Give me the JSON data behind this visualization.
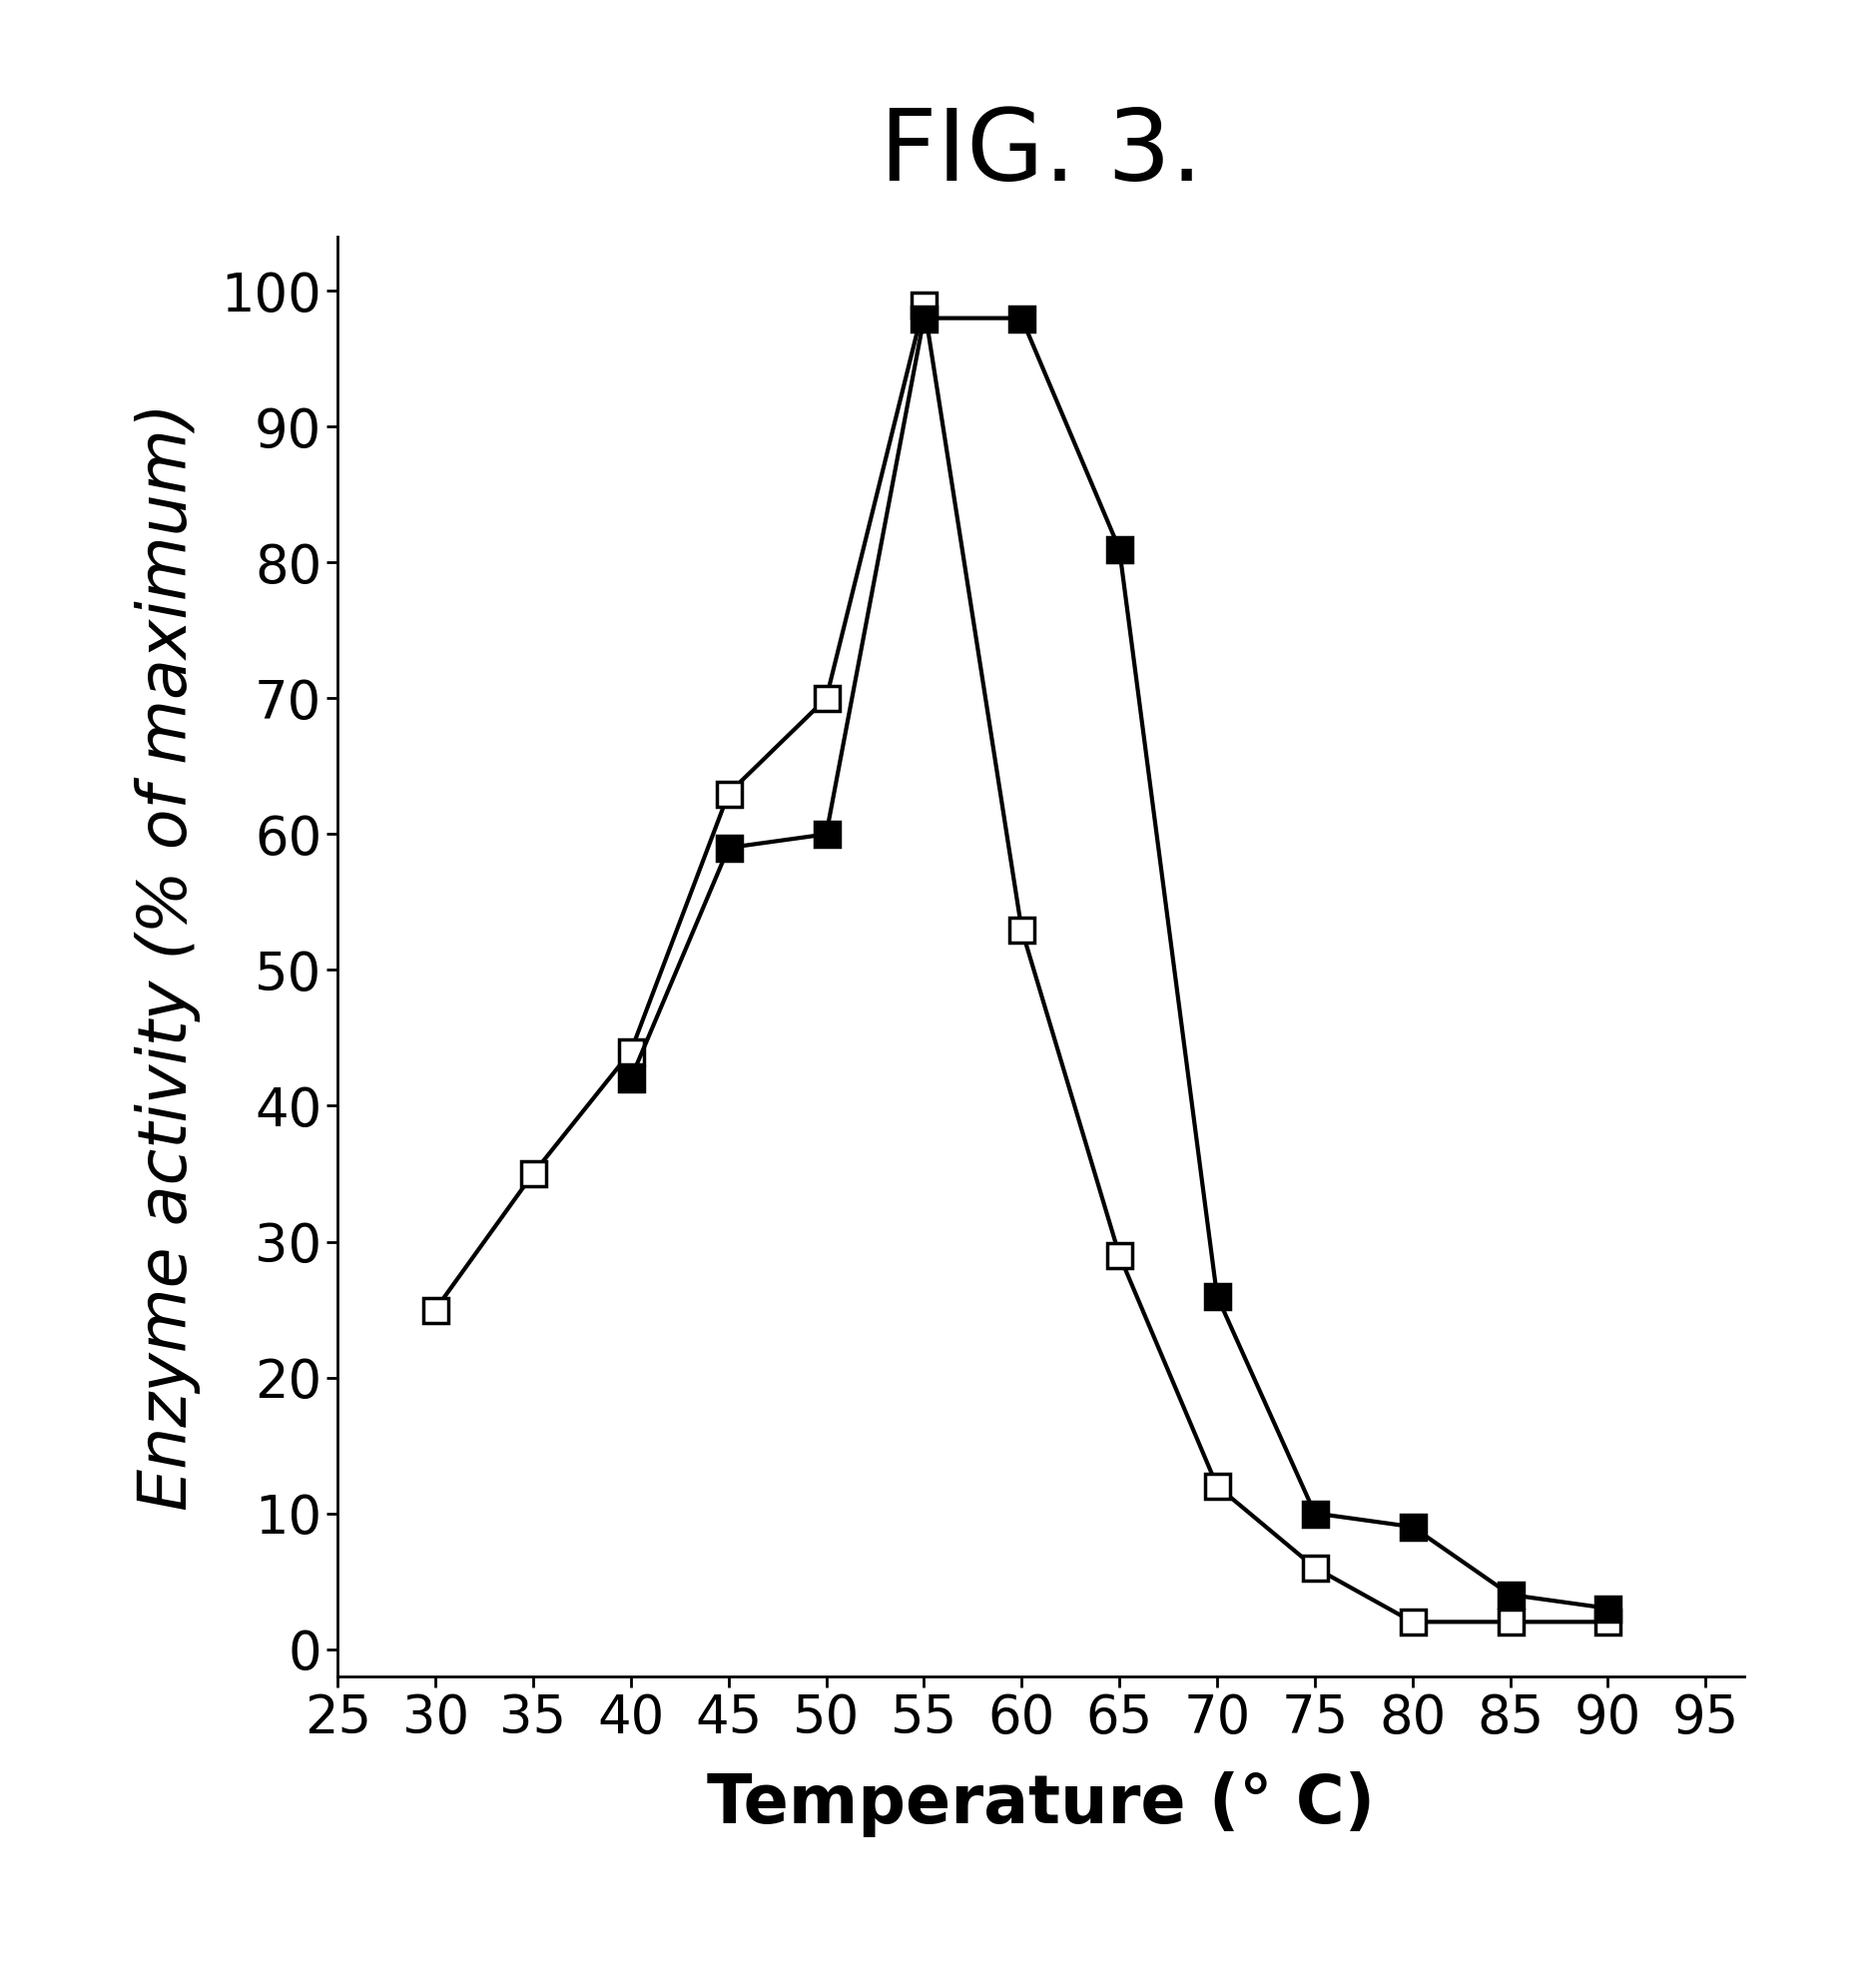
{
  "title": "FIG. 3.",
  "xlabel": "Temperature (° C)",
  "ylabel": "Enzyme activity (% of maximum)",
  "xlim": [
    25,
    97
  ],
  "ylim": [
    -2,
    104
  ],
  "xticks": [
    25,
    30,
    35,
    40,
    45,
    50,
    55,
    60,
    65,
    70,
    75,
    80,
    85,
    90,
    95
  ],
  "yticks": [
    0,
    10,
    20,
    30,
    40,
    50,
    60,
    70,
    80,
    90,
    100
  ],
  "open_square_x": [
    30,
    35,
    40,
    45,
    50,
    55,
    60,
    65,
    70,
    75,
    80,
    85,
    90
  ],
  "open_square_y": [
    25,
    35,
    44,
    63,
    70,
    99,
    53,
    29,
    12,
    6,
    2,
    2,
    2
  ],
  "filled_square_x": [
    40,
    45,
    50,
    55,
    60,
    65,
    70,
    75,
    80,
    85,
    90
  ],
  "filled_square_y": [
    42,
    59,
    60,
    98,
    98,
    81,
    26,
    10,
    9,
    4,
    3
  ],
  "line_color": "#000000",
  "background_color": "#ffffff",
  "title_fontsize": 72,
  "axis_label_fontsize": 48,
  "tick_fontsize": 38,
  "marker_size": 18,
  "line_width": 3.0
}
